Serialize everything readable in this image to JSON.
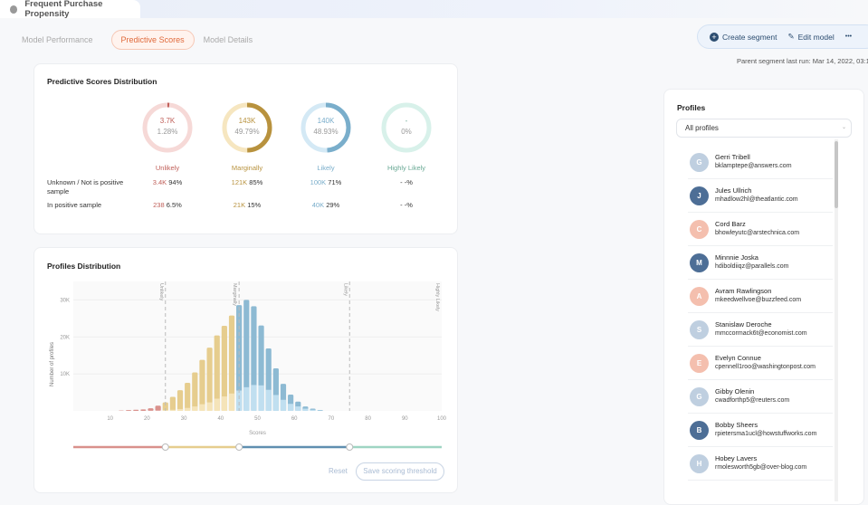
{
  "header": {
    "title": "Frequent Purchase Propensity"
  },
  "tabs": [
    {
      "label": "Model Performance",
      "active": false
    },
    {
      "label": "Predictive Scores",
      "active": true
    },
    {
      "label": "Model Details",
      "active": false
    }
  ],
  "actions": {
    "create_segment": "Create segment",
    "edit_model": "Edit model",
    "more": "•••"
  },
  "last_run": "Parent segment last run: Mar 14, 2022, 03:1",
  "distribution": {
    "title": "Predictive Scores Distribution",
    "row_labels": [
      "Unknown / Not is positive sample",
      "In positive sample"
    ],
    "categories": [
      {
        "name": "Unlikely",
        "count": "3.7K",
        "pct": "1.28%",
        "fraction": 0.0128,
        "color": "#c0605a",
        "light": "#f6d9d7",
        "not_pos_count": "3.4K",
        "not_pos_pct": "94%",
        "pos_count": "238",
        "pos_pct": "6.5%"
      },
      {
        "name": "Marginally",
        "count": "143K",
        "pct": "49.79%",
        "fraction": 0.4979,
        "color": "#b8923e",
        "light": "#f6e6c0",
        "not_pos_count": "121K",
        "not_pos_pct": "85%",
        "pos_count": "21K",
        "pos_pct": "15%"
      },
      {
        "name": "Likely",
        "count": "140K",
        "pct": "48.93%",
        "fraction": 0.4893,
        "color": "#7aaecb",
        "light": "#d4e9f5",
        "not_pos_count": "100K",
        "not_pos_pct": "71%",
        "pos_count": "40K",
        "pos_pct": "29%"
      },
      {
        "name": "Highly Likely",
        "count": "-",
        "pct": "0%",
        "fraction": 0,
        "color": "#6aa995",
        "light": "#d8f1ea",
        "not_pos_count": "",
        "not_pos_pct": "- -%",
        "pos_count": "",
        "pos_pct": "- -%"
      }
    ]
  },
  "profiles_distribution": {
    "title": "Profiles Distribution",
    "reset": "Reset",
    "save": "Save scoring threshold"
  },
  "chart_data": {
    "type": "bar",
    "stacked": true,
    "xlabel": "Scores",
    "ylabel": "Number of profiles",
    "xlim": [
      0,
      100
    ],
    "ylim": [
      0,
      35000
    ],
    "xticks": [
      10,
      20,
      30,
      40,
      50,
      60,
      70,
      80,
      90,
      100
    ],
    "yticks": [
      {
        "v": 10000,
        "label": "10K"
      },
      {
        "v": 20000,
        "label": "20K"
      },
      {
        "v": 30000,
        "label": "30K"
      }
    ],
    "grid": true,
    "thresholds": [
      {
        "score": 25,
        "label": "Unlikely"
      },
      {
        "score": 45,
        "label": "Marginally"
      },
      {
        "score": 75,
        "label": "Likely"
      },
      {
        "score": 100,
        "label": "Highly Likely"
      }
    ],
    "x": [
      13,
      15,
      17,
      19,
      21,
      23,
      25,
      27,
      29,
      31,
      33,
      35,
      37,
      39,
      41,
      43,
      45,
      47,
      49,
      51,
      53,
      55,
      57,
      59,
      61,
      63,
      65,
      67
    ],
    "series": [
      {
        "name": "total",
        "values": [
          100,
          200,
          300,
          400,
          700,
          1400,
          2300,
          3800,
          5600,
          7600,
          10400,
          13800,
          17100,
          20400,
          23000,
          25800,
          28600,
          30000,
          28300,
          23100,
          16900,
          11500,
          7300,
          4400,
          2500,
          1200,
          600,
          250
        ]
      },
      {
        "name": "positive",
        "values": [
          0,
          0,
          0,
          0,
          50,
          100,
          200,
          300,
          500,
          800,
          1200,
          1800,
          2300,
          3300,
          3900,
          4700,
          5500,
          6400,
          7000,
          6900,
          5700,
          4300,
          3000,
          1900,
          1200,
          600,
          300,
          100
        ]
      }
    ],
    "band_colors": {
      "unlikely": [
        "#d9918c",
        "#f1cfcc"
      ],
      "marginally": [
        "#e6cd8e",
        "#f5e4b9"
      ],
      "likely": [
        "#8dbad3",
        "#c0dff0"
      ],
      "highly_likely": [
        "#9fd5c3",
        "#d8f1ea"
      ]
    }
  },
  "profiles": {
    "title": "Profiles",
    "filter": "All profiles",
    "items": [
      {
        "initial": "G",
        "name": "Gerri Tribell",
        "email": "bklamptepe@answers.com",
        "color": "#bfcfe0"
      },
      {
        "initial": "J",
        "name": "Jules Ullrich",
        "email": "mhadlow2hl@theatlantic.com",
        "color": "#4d6e96"
      },
      {
        "initial": "C",
        "name": "Cord Barz",
        "email": "bhowleyutc@arstechnica.com",
        "color": "#f4bfae"
      },
      {
        "initial": "M",
        "name": "Minnnie Joska",
        "email": "hdiboldiiqz@parallels.com",
        "color": "#4d6e96"
      },
      {
        "initial": "A",
        "name": "Avram Rawlingson",
        "email": "mkeedwellvoe@buzzfeed.com",
        "color": "#f4bfae"
      },
      {
        "initial": "S",
        "name": "Stanislaw Deroche",
        "email": "mmccormack6t@economist.com",
        "color": "#bfcfe0"
      },
      {
        "initial": "E",
        "name": "Evelyn Connue",
        "email": "cpennell1roo@washingtonpost.com",
        "color": "#f4bfae"
      },
      {
        "initial": "G",
        "name": "Gibby Olenin",
        "email": "cwadforthp5@reuters.com",
        "color": "#bfcfe0"
      },
      {
        "initial": "B",
        "name": "Bobby Sheers",
        "email": "rpietersma1ucl@howstuffworks.com",
        "color": "#4d6e96"
      },
      {
        "initial": "H",
        "name": "Hobey Lavers",
        "email": "rmolesworth5gb@over-blog.com",
        "color": "#bfcfe0"
      }
    ]
  }
}
